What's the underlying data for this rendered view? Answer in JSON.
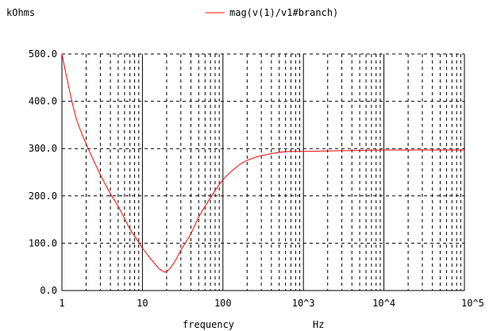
{
  "chart_data": {
    "type": "line",
    "scale": {
      "x": "log",
      "y": "linear"
    },
    "xlabel": "frequency",
    "xunit": "Hz",
    "yunit": "kOhms",
    "xlim": [
      1,
      100000
    ],
    "ylim": [
      0,
      500
    ],
    "x_ticks": [
      1,
      10,
      100,
      1000,
      10000,
      100000
    ],
    "x_tick_labels": [
      "1",
      "10",
      "100",
      "10^3",
      "10^4",
      "10^5"
    ],
    "y_ticks": [
      0,
      100,
      200,
      300,
      400,
      500
    ],
    "y_tick_labels": [
      "0.0",
      "100.0",
      "200.0",
      "300.0",
      "400.0",
      "500.0"
    ],
    "grid": {
      "major": "solid",
      "minor": "dashed"
    },
    "legend_position": "top-center",
    "colors": {
      "series": "#ff0000",
      "grid": "#000000",
      "background": "#ffffff"
    },
    "series": [
      {
        "name": "mag(v(1)/v1#branch)",
        "color": "#ff0000",
        "x": [
          1,
          1.2,
          1.5,
          2,
          3,
          4,
          5,
          6,
          7,
          8,
          10,
          12,
          15,
          17,
          20,
          25,
          30,
          40,
          50,
          70,
          100,
          150,
          200,
          300,
          500,
          700,
          1000,
          2000,
          5000,
          10000,
          100000
        ],
        "y": [
          500,
          435,
          365,
          310,
          245,
          205,
          178,
          152,
          130,
          115,
          90,
          72,
          52,
          43,
          40,
          60,
          85,
          120,
          155,
          196,
          234,
          262,
          275,
          285,
          292,
          294,
          294,
          295,
          296,
          297,
          297
        ]
      }
    ]
  }
}
